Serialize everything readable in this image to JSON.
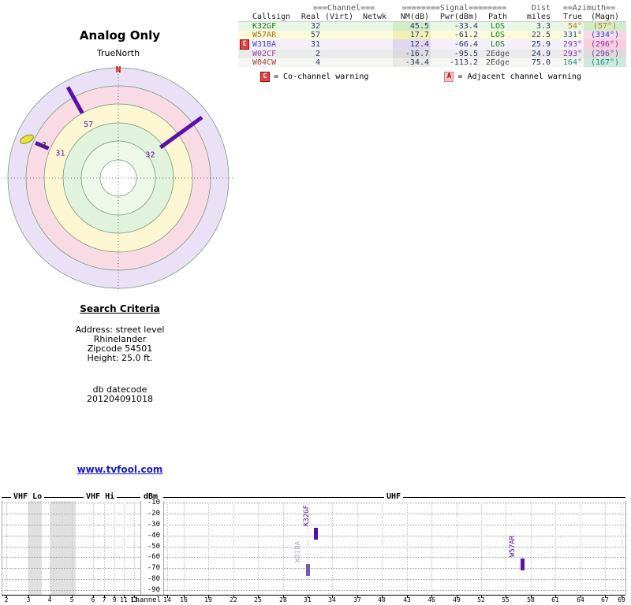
{
  "page": {
    "title": "Analog Only",
    "orientation_label": "TrueNorth",
    "site_link": "www.tvfool.com"
  },
  "search_criteria": {
    "heading": "Search Criteria",
    "lines": [
      "Address: street level",
      "Rhinelander",
      "Zipcode 54501",
      "Height: 25.0 ft."
    ],
    "db_label": "db datecode",
    "db_datecode": "201204091018"
  },
  "warning_legend": {
    "co_badge": "C",
    "co_text": "= Co-channel warning",
    "adj_badge": "A",
    "adj_text": "= Adjacent channel warning"
  },
  "station_table": {
    "group_headers": {
      "channel": "===Channel===",
      "signal": "========Signal========",
      "dist": "Dist",
      "azimuth": "==Azimuth=="
    },
    "columns": [
      "Callsign",
      "Real",
      "(Virt)",
      "Netwk",
      "NM(dB)",
      "Pwr(dBm)",
      "Path",
      "miles",
      "True",
      "(Magn)"
    ],
    "number_color": "#283868",
    "rows": [
      {
        "warning": "",
        "callsign": "K32GF",
        "real": "32",
        "virt": "",
        "netwk": "",
        "nm_db": "45.5",
        "pwr_dbm": "-33.4",
        "path": "LOS",
        "miles": "3.3",
        "true_az": "54°",
        "magn_az": "(57°)",
        "style": {
          "callsign": "#0a7d0a",
          "row_bg": "#eaf6e6",
          "nm_bg": "#d2ecc8",
          "true": "#b87a00",
          "magn_bg": "#d2ecc8",
          "path": "#0a7d0a"
        }
      },
      {
        "warning": "",
        "callsign": "W57AR",
        "real": "57",
        "virt": "",
        "netwk": "",
        "nm_db": "17.7",
        "pwr_dbm": "-61.2",
        "path": "LOS",
        "miles": "22.5",
        "true_az": "331°",
        "magn_az": "(334°)",
        "style": {
          "callsign": "#b06a00",
          "row_bg": "#fbfbdc",
          "nm_bg": "#f0f0b4",
          "true": "#2850c8",
          "magn_bg": "#f8d8e8",
          "path": "#0a7d0a"
        }
      },
      {
        "warning": "C",
        "callsign": "W31BA",
        "real": "31",
        "virt": "",
        "netwk": "",
        "nm_db": "12.4",
        "pwr_dbm": "-66.4",
        "path": "LOS",
        "miles": "25.9",
        "true_az": "293°",
        "magn_az": "(296°)",
        "style": {
          "callsign": "#4444cc",
          "row_bg": "#f3f0fa",
          "nm_bg": "#e0d8f2",
          "true": "#8838a8",
          "magn_bg": "#f6cede",
          "path": "#0a7d0a"
        }
      },
      {
        "warning": "",
        "callsign": "W02CF",
        "real": "2",
        "virt": "",
        "netwk": "",
        "nm_db": "-16.7",
        "pwr_dbm": "-95.5",
        "path": "2Edge",
        "miles": "24.9",
        "true_az": "293°",
        "magn_az": "(296°)",
        "style": {
          "callsign": "#9040a8",
          "row_bg": "#ebebeb",
          "nm_bg": "#dcdcdc",
          "true": "#8838a8",
          "magn_bg": "#dcdcdc",
          "path": "#555555"
        }
      },
      {
        "warning": "",
        "callsign": "W04CW",
        "real": "4",
        "virt": "",
        "netwk": "",
        "nm_db": "-34.4",
        "pwr_dbm": "-113.2",
        "path": "2Edge",
        "miles": "75.0",
        "true_az": "164°",
        "magn_az": "(167°)",
        "style": {
          "callsign": "#a84848",
          "row_bg": "#f6f6f2",
          "nm_bg": "#eaeae2",
          "true": "#209078",
          "magn_bg": "#cdeade",
          "path": "#555555"
        }
      }
    ]
  },
  "chart_data": [
    {
      "type": "radar",
      "title": "Analog Only",
      "orientation": "TrueNorth",
      "north_label": "N",
      "stations": [
        {
          "callsign": "K32GF",
          "channel_label": "32",
          "azimuth_true_deg": 54
        },
        {
          "callsign": "W57AR",
          "channel_label": "57",
          "azimuth_true_deg": 331
        },
        {
          "callsign": "W31BA",
          "channel_label": "31",
          "azimuth_true_deg": 293
        },
        {
          "callsign": "W02CF",
          "channel_label": "-2",
          "azimuth_true_deg": 293,
          "marker": "ellipse"
        }
      ],
      "marks": [
        {
          "label": "57",
          "azimuth_deg": 331,
          "r1": 94,
          "r2": 132,
          "type": "line"
        },
        {
          "label": "32",
          "azimuth_deg": 54,
          "r1": 66,
          "r2": 131,
          "type": "line"
        },
        {
          "label": "31",
          "azimuth_deg": 293,
          "r1": 96,
          "r2": 114,
          "type": "line"
        },
        {
          "label": "-2",
          "azimuth_deg": 293,
          "r": 126,
          "type": "ellipse"
        }
      ],
      "rings": [
        {
          "r": 140,
          "fill": "#eae1f6"
        },
        {
          "r": 117,
          "fill": "#f8dbe4"
        },
        {
          "r": 94,
          "fill": "#fcf6d3"
        },
        {
          "r": 70,
          "fill": "#e1f2dd"
        },
        {
          "r": 47,
          "fill": "#edf8e9"
        },
        {
          "r": 23,
          "fill": "#ffffff"
        }
      ],
      "mark_color": "#5a0fa8",
      "north_color": "#d00000"
    },
    {
      "type": "table",
      "title": "Station list",
      "columns": [
        "Callsign",
        "Real",
        "(Virt)",
        "Netwk",
        "NM(dB)",
        "Pwr(dBm)",
        "Path",
        "miles",
        "True",
        "(Magn)"
      ],
      "rows": [
        [
          "K32GF",
          "32",
          "",
          "",
          "45.5",
          "-33.4",
          "LOS",
          "3.3",
          "54°",
          "(57°)"
        ],
        [
          "W57AR",
          "57",
          "",
          "",
          "17.7",
          "-61.2",
          "LOS",
          "22.5",
          "331°",
          "(334°)"
        ],
        [
          "W31BA",
          "31",
          "",
          "",
          "12.4",
          "-66.4",
          "LOS",
          "25.9",
          "293°",
          "(296°)"
        ],
        [
          "W02CF",
          "2",
          "",
          "",
          "-16.7",
          "-95.5",
          "2Edge",
          "24.9",
          "293°",
          "(296°)"
        ],
        [
          "W04CW",
          "4",
          "",
          "",
          "-34.4",
          "-113.2",
          "2Edge",
          "75.0",
          "164°",
          "(167°)"
        ]
      ],
      "warnings": {
        "W31BA": "co-channel"
      }
    },
    {
      "type": "bar",
      "ylabel": "dBm",
      "xlabel": "Channel",
      "ylim": [
        -90,
        -10
      ],
      "yticks": [
        -10,
        -20,
        -30,
        -40,
        -50,
        -60,
        -70,
        -80,
        -90
      ],
      "bands": [
        {
          "name": "VHF Lo",
          "ticks": [
            2,
            3,
            4,
            5,
            6
          ],
          "ch_range": [
            2,
            6
          ]
        },
        {
          "name": "VHF Hi",
          "ticks": [
            7,
            9,
            11,
            13
          ],
          "ch_range": [
            7,
            13
          ]
        },
        {
          "name": "UHF",
          "ticks": [
            14,
            16,
            19,
            22,
            25,
            28,
            31,
            34,
            37,
            40,
            43,
            46,
            49,
            52,
            55,
            58,
            61,
            64,
            67,
            69
          ],
          "ch_range": [
            14,
            69
          ]
        }
      ],
      "shaded_regions": [
        {
          "band": "VHF Lo",
          "from_ch": 3.0,
          "to_ch": 3.6
        },
        {
          "band": "VHF Lo",
          "from_ch": 4.05,
          "to_ch": 5.2
        }
      ],
      "bars": [
        {
          "callsign": "K32GF",
          "channel": 32,
          "pwr_dbm": -33.4,
          "muted": false
        },
        {
          "callsign": "W31BA",
          "channel": 31,
          "pwr_dbm": -66.4,
          "muted": true
        },
        {
          "callsign": "W57AR",
          "channel": 57,
          "pwr_dbm": -61.2,
          "muted": false
        }
      ],
      "bar_color": "#5a0fa8",
      "muted_bar_color": "#7a58b8",
      "muted_label_color": "#b4a0d8"
    }
  ]
}
